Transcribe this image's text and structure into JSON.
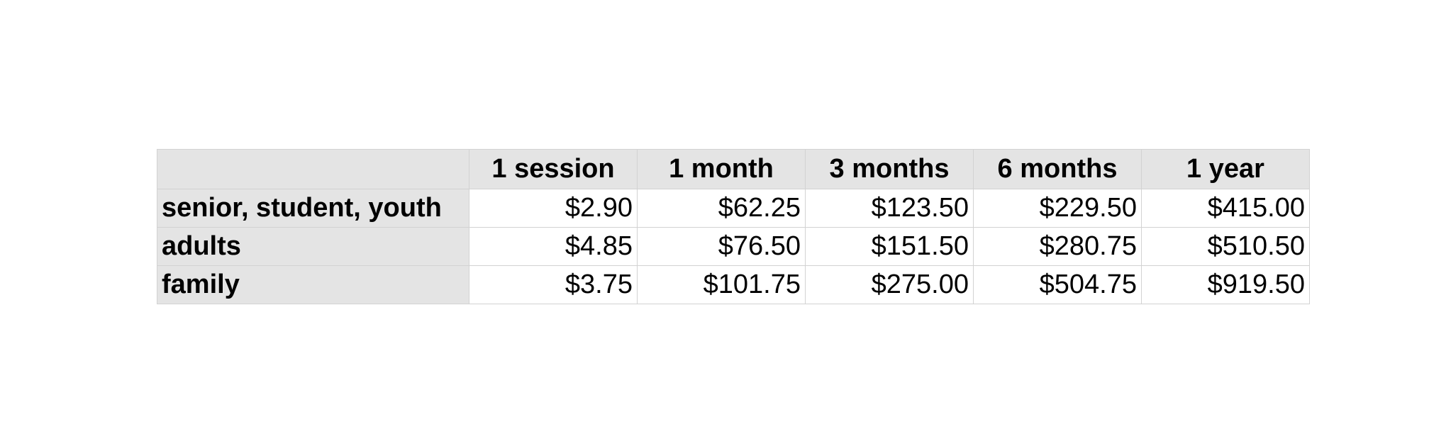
{
  "table": {
    "columns": [
      "1 session",
      "1 month",
      "3 months",
      "6 months",
      "1 year"
    ],
    "rows": [
      {
        "label": "senior, student, youth",
        "values": [
          "$2.90",
          "$62.25",
          "$123.50",
          "$229.50",
          "$415.00"
        ]
      },
      {
        "label": "adults",
        "values": [
          "$4.85",
          "$76.50",
          "$151.50",
          "$280.75",
          "$510.50"
        ]
      },
      {
        "label": "family",
        "values": [
          "$3.75",
          "$101.75",
          "$275.00",
          "$504.75",
          "$919.50"
        ]
      }
    ]
  }
}
